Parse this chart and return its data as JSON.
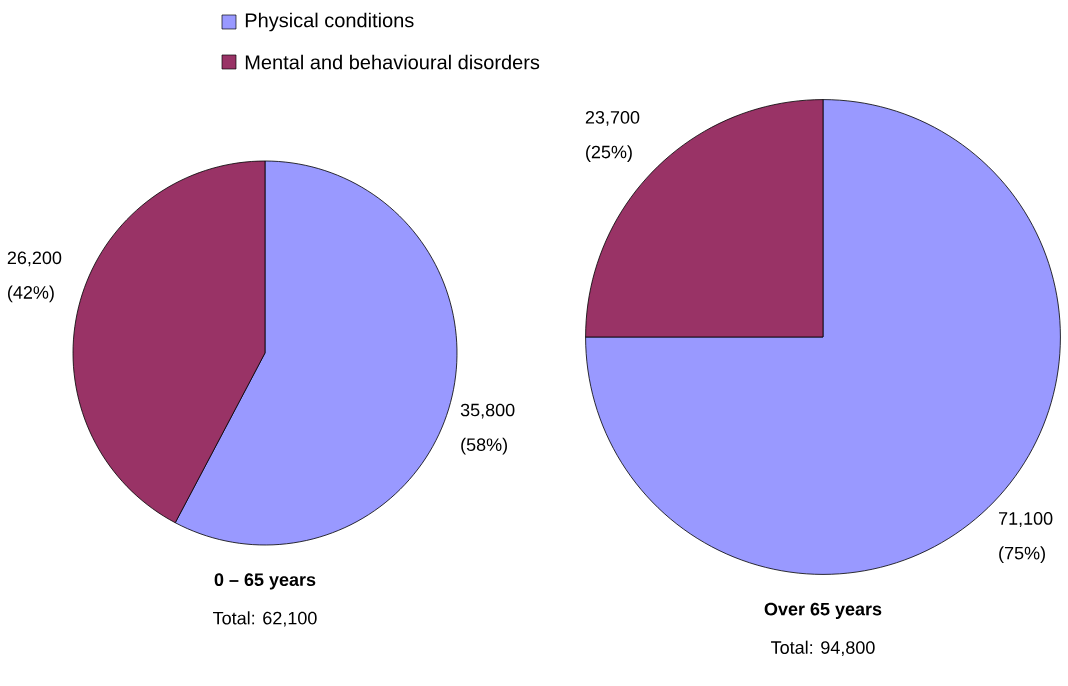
{
  "chart_data": [
    {
      "type": "pie",
      "title": "0 – 65 years",
      "subtitle": "Total: 62,100",
      "categories": [
        "Physical conditions",
        "Mental and behavioural disorders"
      ],
      "values": [
        35800,
        26200
      ],
      "colors": [
        "#9999ff",
        "#993366"
      ],
      "value_labels": [
        "35,800 (58%)",
        "26,200 (42%)"
      ],
      "legend": "top"
    },
    {
      "type": "pie",
      "title": "Over 65 years",
      "subtitle": "Total: 94,800",
      "categories": [
        null,
        null
      ],
      "values": [
        71100,
        23700
      ],
      "colors": [
        "#9999ff",
        "#993366"
      ],
      "value_labels": [
        "71,100 (75%)",
        "23,700 (25%)"
      ]
    }
  ]
}
